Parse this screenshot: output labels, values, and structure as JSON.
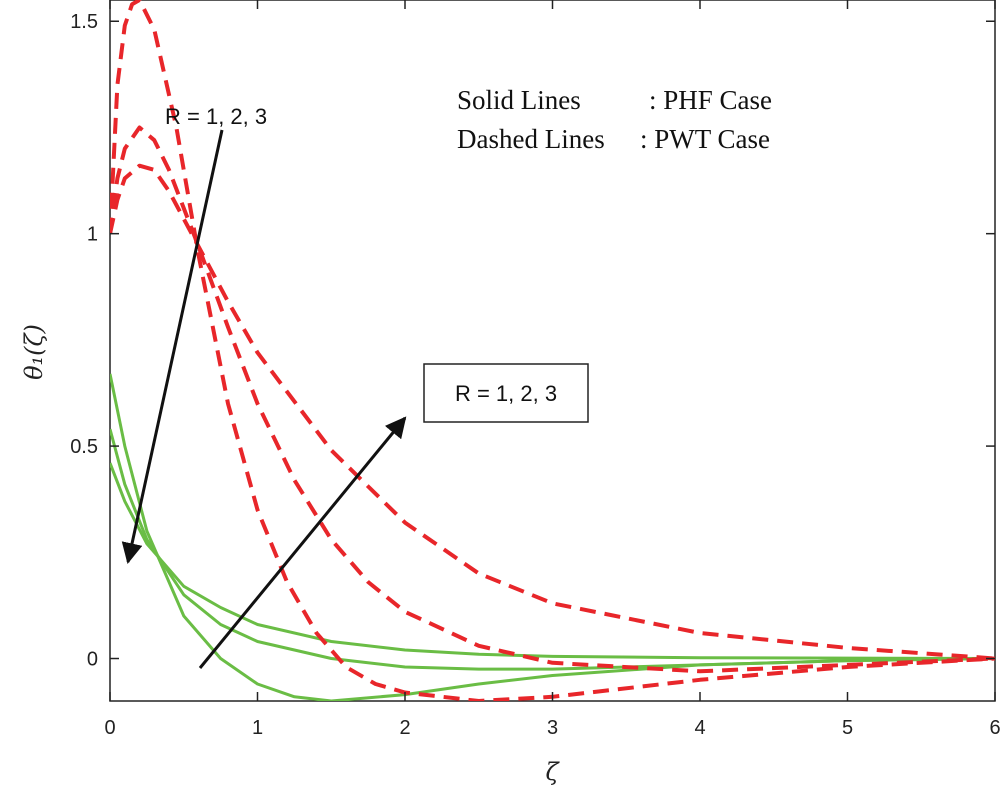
{
  "chart_data": {
    "type": "line",
    "xlabel": "ζ",
    "ylabel": "θ₁(ζ)",
    "xlim": [
      0,
      6
    ],
    "ylim": [
      -0.1,
      1.55
    ],
    "xticks": [
      "0",
      "1",
      "2",
      "3",
      "4",
      "5",
      "6"
    ],
    "yticks": [
      {
        "value": 0,
        "label": "0"
      },
      {
        "value": 0.5,
        "label": "0.5"
      },
      {
        "value": 1,
        "label": "1"
      },
      {
        "value": 1.5,
        "label": "1.5"
      }
    ],
    "grid": false,
    "colors": {
      "solid": "#6abd45",
      "dashed": "#e8262a",
      "arrow": "#111111"
    },
    "series": [
      {
        "style": "solid",
        "x": [
          0,
          0.1,
          0.25,
          0.5,
          0.75,
          1,
          1.25,
          1.5,
          2,
          2.5,
          3,
          4,
          5,
          6
        ],
        "y": [
          0.67,
          0.5,
          0.3,
          0.1,
          0.0,
          -0.06,
          -0.09,
          -0.1,
          -0.085,
          -0.06,
          -0.04,
          -0.015,
          -0.005,
          0
        ]
      },
      {
        "style": "solid",
        "x": [
          0,
          0.1,
          0.25,
          0.5,
          0.75,
          1,
          1.5,
          2,
          2.5,
          3,
          4,
          5,
          6
        ],
        "y": [
          0.54,
          0.41,
          0.28,
          0.15,
          0.08,
          0.04,
          0.0,
          -0.02,
          -0.025,
          -0.025,
          -0.015,
          -0.005,
          0
        ]
      },
      {
        "style": "solid",
        "x": [
          0,
          0.1,
          0.25,
          0.5,
          0.75,
          1,
          1.5,
          2,
          2.5,
          3,
          4,
          5,
          6
        ],
        "y": [
          0.46,
          0.37,
          0.27,
          0.17,
          0.12,
          0.08,
          0.04,
          0.02,
          0.01,
          0.005,
          0.002,
          0.001,
          0
        ]
      },
      {
        "style": "dashed",
        "x": [
          0,
          0.05,
          0.1,
          0.15,
          0.2,
          0.3,
          0.45,
          0.6,
          0.8,
          1,
          1.2,
          1.4,
          1.6,
          1.8,
          2,
          2.5,
          3,
          4,
          5,
          6
        ],
        "y": [
          1.0,
          1.35,
          1.49,
          1.54,
          1.55,
          1.48,
          1.25,
          0.95,
          0.6,
          0.35,
          0.18,
          0.06,
          -0.02,
          -0.06,
          -0.08,
          -0.1,
          -0.09,
          -0.05,
          -0.02,
          0
        ]
      },
      {
        "style": "dashed",
        "x": [
          0,
          0.05,
          0.1,
          0.2,
          0.3,
          0.4,
          0.6,
          0.8,
          1,
          1.25,
          1.5,
          1.75,
          2,
          2.5,
          3,
          4,
          5,
          6
        ],
        "y": [
          1.0,
          1.13,
          1.2,
          1.25,
          1.22,
          1.15,
          0.97,
          0.78,
          0.6,
          0.42,
          0.28,
          0.18,
          0.11,
          0.03,
          -0.01,
          -0.03,
          -0.015,
          0
        ]
      },
      {
        "style": "dashed",
        "x": [
          0,
          0.05,
          0.1,
          0.2,
          0.3,
          0.4,
          0.6,
          0.8,
          1,
          1.5,
          2,
          2.5,
          3,
          4,
          5,
          6
        ],
        "y": [
          1.0,
          1.08,
          1.13,
          1.16,
          1.15,
          1.1,
          0.97,
          0.84,
          0.72,
          0.49,
          0.32,
          0.2,
          0.13,
          0.06,
          0.025,
          0
        ]
      }
    ],
    "annotations": {
      "r_left": "R = 1, 2, 3",
      "r_box": "R =  1, 2, 3",
      "legend_solid_key": "Solid Lines",
      "legend_solid_val": ": PHF Case",
      "legend_dashed_key": "Dashed Lines",
      "legend_dashed_val": ": PWT Case"
    }
  }
}
